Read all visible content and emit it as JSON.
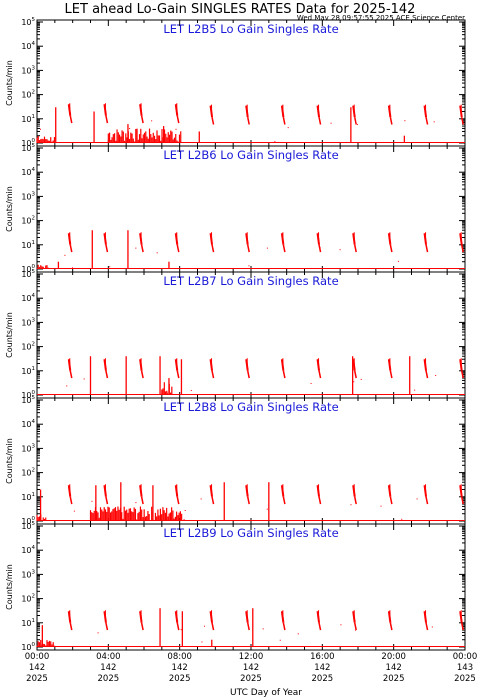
{
  "title": "LET ahead Lo-Gain SINGLES RATES Data for 2025-142",
  "timestamp": "Wed May 28 09:57:55 2025 ACE Science Center",
  "x_axis_title": "UTC Day of Year",
  "colors": {
    "data": "#ff0000",
    "panel_title": "#1a1ad8",
    "frame": "#000000"
  },
  "chart_data": [
    {
      "type": "scatter",
      "title": "LET L2B5 Lo Gain Singles Rate",
      "ylabel": "Counts/min",
      "yscale": "log",
      "ylim": [
        1,
        100000
      ],
      "xlim": [
        0,
        24
      ],
      "x_units": "hours UTC, day 142 of 2025",
      "spikes": [
        {
          "x": 1.95,
          "top": 40
        },
        {
          "x": 3.95,
          "top": 40
        },
        {
          "x": 5.95,
          "top": 40
        },
        {
          "x": 7.95,
          "top": 40
        },
        {
          "x": 9.9,
          "top": 35
        },
        {
          "x": 11.9,
          "top": 35
        },
        {
          "x": 13.9,
          "top": 35
        },
        {
          "x": 15.9,
          "top": 35
        },
        {
          "x": 17.9,
          "top": 35
        },
        {
          "x": 19.9,
          "top": 35
        },
        {
          "x": 21.9,
          "top": 35
        },
        {
          "x": 23.9,
          "top": 35
        }
      ],
      "drops": [
        {
          "x": 1.05,
          "top": 30
        },
        {
          "x": 3.2,
          "top": 20
        },
        {
          "x": 5.1,
          "top": 6
        },
        {
          "x": 7.1,
          "top": 5
        },
        {
          "x": 9.1,
          "top": 3
        },
        {
          "x": 17.6,
          "top": 30
        },
        {
          "x": 20.6,
          "top": 2
        }
      ],
      "baseline_clusters": [
        {
          "from": 4.0,
          "to": 8.1,
          "max": 4
        },
        {
          "from": 0.0,
          "to": 1.0,
          "max": 2
        }
      ]
    },
    {
      "type": "scatter",
      "title": "LET L2B6 Lo Gain Singles Rate",
      "ylabel": "Counts/min",
      "yscale": "log",
      "ylim": [
        1,
        100000
      ],
      "xlim": [
        0,
        24
      ],
      "spikes": [
        {
          "x": 1.95,
          "top": 30
        },
        {
          "x": 3.95,
          "top": 30
        },
        {
          "x": 5.95,
          "top": 30
        },
        {
          "x": 7.95,
          "top": 30
        },
        {
          "x": 9.9,
          "top": 30
        },
        {
          "x": 11.9,
          "top": 30
        },
        {
          "x": 13.9,
          "top": 30
        },
        {
          "x": 15.9,
          "top": 30
        },
        {
          "x": 17.9,
          "top": 30
        },
        {
          "x": 19.9,
          "top": 30
        },
        {
          "x": 21.9,
          "top": 30
        },
        {
          "x": 23.9,
          "top": 30
        }
      ],
      "drops": [
        {
          "x": 3.1,
          "top": 40
        },
        {
          "x": 5.1,
          "top": 40
        },
        {
          "x": 7.4,
          "top": 2
        },
        {
          "x": 1.2,
          "top": 2
        }
      ],
      "baseline_clusters": [
        {
          "from": 0.0,
          "to": 0.8,
          "max": 1.5
        }
      ]
    },
    {
      "type": "scatter",
      "title": "LET L2B7 Lo Gain Singles Rate",
      "ylabel": "Counts/min",
      "yscale": "log",
      "ylim": [
        1,
        100000
      ],
      "xlim": [
        0,
        24
      ],
      "spikes": [
        {
          "x": 1.95,
          "top": 30
        },
        {
          "x": 3.95,
          "top": 30
        },
        {
          "x": 5.95,
          "top": 30
        },
        {
          "x": 7.95,
          "top": 30
        },
        {
          "x": 9.9,
          "top": 30
        },
        {
          "x": 11.9,
          "top": 30
        },
        {
          "x": 13.9,
          "top": 30
        },
        {
          "x": 15.9,
          "top": 30
        },
        {
          "x": 17.9,
          "top": 30
        },
        {
          "x": 19.9,
          "top": 30
        },
        {
          "x": 21.9,
          "top": 30
        },
        {
          "x": 23.9,
          "top": 30
        }
      ],
      "drops": [
        {
          "x": 3.0,
          "top": 40
        },
        {
          "x": 5.0,
          "top": 40
        },
        {
          "x": 6.9,
          "top": 40
        },
        {
          "x": 7.4,
          "top": 5
        },
        {
          "x": 8.1,
          "top": 30
        },
        {
          "x": 17.7,
          "top": 40
        },
        {
          "x": 20.9,
          "top": 40
        }
      ],
      "baseline_clusters": [
        {
          "from": 7.0,
          "to": 7.6,
          "max": 4
        }
      ]
    },
    {
      "type": "scatter",
      "title": "LET L2B8 Lo Gain Singles Rate",
      "ylabel": "Counts/min",
      "yscale": "log",
      "ylim": [
        1,
        100000
      ],
      "xlim": [
        0,
        24
      ],
      "spikes": [
        {
          "x": 1.95,
          "top": 30
        },
        {
          "x": 3.95,
          "top": 30
        },
        {
          "x": 5.95,
          "top": 30
        },
        {
          "x": 7.95,
          "top": 30
        },
        {
          "x": 9.9,
          "top": 30
        },
        {
          "x": 11.9,
          "top": 30
        },
        {
          "x": 13.9,
          "top": 30
        },
        {
          "x": 15.9,
          "top": 30
        },
        {
          "x": 17.9,
          "top": 30
        },
        {
          "x": 19.9,
          "top": 30
        },
        {
          "x": 21.9,
          "top": 30
        },
        {
          "x": 23.9,
          "top": 30
        }
      ],
      "drops": [
        {
          "x": 3.3,
          "top": 30
        },
        {
          "x": 4.7,
          "top": 40
        },
        {
          "x": 6.5,
          "top": 30
        },
        {
          "x": 10.5,
          "top": 40
        },
        {
          "x": 13.0,
          "top": 40
        },
        {
          "x": 0.2,
          "top": 20
        }
      ],
      "baseline_clusters": [
        {
          "from": 3.0,
          "to": 8.3,
          "max": 4
        },
        {
          "from": 0.0,
          "to": 0.6,
          "max": 2
        }
      ]
    },
    {
      "type": "scatter",
      "title": "LET L2B9 Lo Gain Singles Rate",
      "ylabel": "Counts/min",
      "yscale": "log",
      "ylim": [
        1,
        100000
      ],
      "xlim": [
        0,
        24
      ],
      "spikes": [
        {
          "x": 1.95,
          "top": 30
        },
        {
          "x": 3.95,
          "top": 30
        },
        {
          "x": 5.95,
          "top": 30
        },
        {
          "x": 7.95,
          "top": 30
        },
        {
          "x": 9.9,
          "top": 30
        },
        {
          "x": 11.9,
          "top": 30
        },
        {
          "x": 13.9,
          "top": 30
        },
        {
          "x": 15.9,
          "top": 30
        },
        {
          "x": 17.9,
          "top": 30
        },
        {
          "x": 19.9,
          "top": 30
        },
        {
          "x": 21.9,
          "top": 30
        },
        {
          "x": 23.9,
          "top": 30
        }
      ],
      "drops": [
        {
          "x": 0.3,
          "top": 8
        },
        {
          "x": 6.9,
          "top": 40
        },
        {
          "x": 8.15,
          "top": 30
        },
        {
          "x": 12.1,
          "top": 40
        },
        {
          "x": 9.8,
          "top": 2
        }
      ],
      "baseline_clusters": [
        {
          "from": 0.0,
          "to": 1.0,
          "max": 2
        }
      ]
    }
  ],
  "y_ticks": [
    {
      "base": "10",
      "exp": "0"
    },
    {
      "base": "10",
      "exp": "1"
    },
    {
      "base": "10",
      "exp": "2"
    },
    {
      "base": "10",
      "exp": "3"
    },
    {
      "base": "10",
      "exp": "4"
    },
    {
      "base": "10",
      "exp": "5"
    }
  ],
  "x_ticks": [
    {
      "hour": 0,
      "time": "00:00",
      "doy": "142",
      "year": "2025"
    },
    {
      "hour": 4,
      "time": "04:00",
      "doy": "142",
      "year": "2025"
    },
    {
      "hour": 8,
      "time": "08:00",
      "doy": "142",
      "year": "2025"
    },
    {
      "hour": 12,
      "time": "12:00",
      "doy": "142",
      "year": "2025"
    },
    {
      "hour": 16,
      "time": "16:00",
      "doy": "142",
      "year": "2025"
    },
    {
      "hour": 20,
      "time": "20:00",
      "doy": "142",
      "year": "2025"
    },
    {
      "hour": 24,
      "time": "00:00",
      "doy": "143",
      "year": "2025"
    }
  ]
}
